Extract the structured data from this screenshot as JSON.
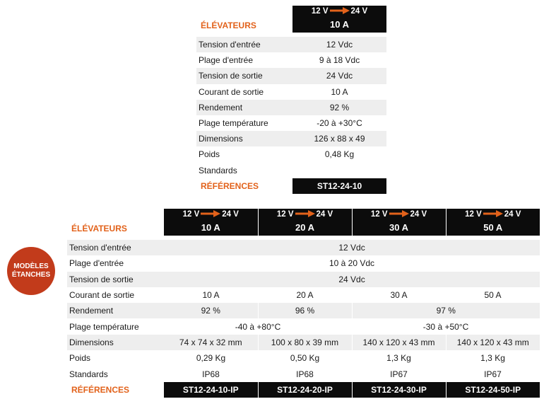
{
  "table1": {
    "section_label": "ÉLÉVATEURS",
    "column": {
      "from": "12 V",
      "to": "24 V",
      "current": "10 A"
    },
    "rows": [
      {
        "label": "Tension d'entrée",
        "value": "12 Vdc"
      },
      {
        "label": "Plage d'entrée",
        "value": "9 à 18 Vdc"
      },
      {
        "label": "Tension de sortie",
        "value": "24 Vdc"
      },
      {
        "label": "Courant de sortie",
        "value": "10 A"
      },
      {
        "label": "Rendement",
        "value": "92 %"
      },
      {
        "label": "Plage température",
        "value": "-20 à +30°C"
      },
      {
        "label": "Dimensions",
        "value": "126 x 88 x 49"
      },
      {
        "label": "Poids",
        "value": "0,48 Kg"
      },
      {
        "label": "Standards",
        "value": ""
      }
    ],
    "references_label": "RÉFÉRENCES",
    "reference": "ST12-24-10"
  },
  "badge": {
    "line1": "MODÈLES",
    "line2": "ÉTANCHES"
  },
  "table2": {
    "section_label": "ÉLÉVATEURS",
    "columns": [
      {
        "from": "12 V",
        "to": "24 V",
        "current": "10 A"
      },
      {
        "from": "12 V",
        "to": "24 V",
        "current": "20 A"
      },
      {
        "from": "12 V",
        "to": "24 V",
        "current": "30 A"
      },
      {
        "from": "12 V",
        "to": "24 V",
        "current": "50 A"
      }
    ],
    "labels": {
      "input_voltage": "Tension d'entrée",
      "input_range": "Plage d'entrée",
      "output_voltage": "Tension de sortie",
      "output_current": "Courant de sortie",
      "efficiency": "Rendement",
      "temperature": "Plage température",
      "dimensions": "Dimensions",
      "weight": "Poids",
      "standards": "Standards"
    },
    "input_voltage": "12 Vdc",
    "input_range": "10 à 20 Vdc",
    "output_voltage": "24 Vdc",
    "output_current": [
      "10 A",
      "20 A",
      "30 A",
      "50 A"
    ],
    "efficiency": [
      "92 %",
      "96 %",
      "97 %"
    ],
    "temperature": [
      "-40 à +80°C",
      "-30 à +50°C"
    ],
    "dimensions": [
      "74 x 74 x 32 mm",
      "100 x 80 x 39 mm",
      "140 x 120 x 43 mm",
      "140 x 120 x 43 mm"
    ],
    "weight": [
      "0,29 Kg",
      "0,50 Kg",
      "1,3 Kg",
      "1,3 Kg"
    ],
    "standards": [
      "IP68",
      "IP68",
      "IP67",
      "IP67"
    ],
    "references_label": "RÉFÉRENCES",
    "references": [
      "ST12-24-10-IP",
      "ST12-24-20-IP",
      "ST12-24-30-IP",
      "ST12-24-50-IP"
    ]
  },
  "colors": {
    "accent": "#e2621b",
    "header_bg": "#0c0c0c",
    "row_stripe": "#eeeeee",
    "badge_bg": "#c23b1b"
  }
}
